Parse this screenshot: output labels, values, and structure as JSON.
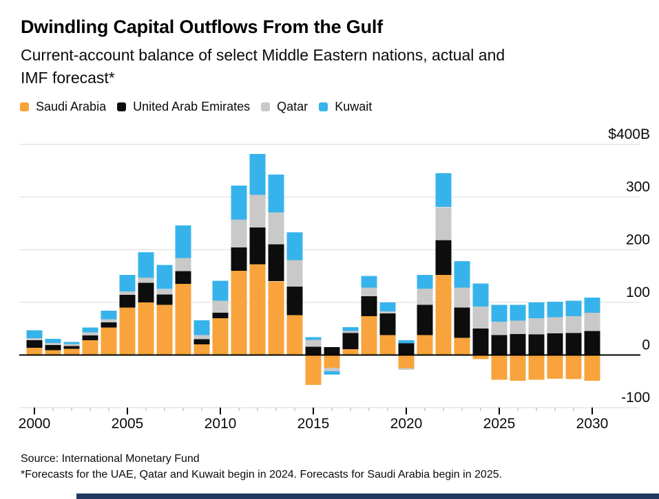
{
  "header": {
    "title": "Dwindling Capital Outflows From the Gulf",
    "subtitle_line1": "Current-account balance of select Middle Eastern nations, actual and",
    "subtitle_line2": "IMF forecast*"
  },
  "legend": [
    {
      "label": "Saudi Arabia",
      "color": "#F8A33B"
    },
    {
      "label": "United Arab Emirates",
      "color": "#0D0D0D"
    },
    {
      "label": "Qatar",
      "color": "#C9C9C9"
    },
    {
      "label": "Kuwait",
      "color": "#37B3EB"
    }
  ],
  "footer": {
    "source": "Source: International Monetary Fund",
    "footnote": "*Forecasts for the UAE, Qatar and Kuwait begin in 2024. Forecasts for Saudi Arabia begin in 2025.",
    "accent_bar_color": "#233A60"
  },
  "chart_data": {
    "type": "bar",
    "stacked": true,
    "title": "Dwindling Capital Outflows From the Gulf",
    "subtitle": "Current-account balance of select Middle Eastern nations, actual and IMF forecast*",
    "unit": "US$ billions",
    "grid": "horizontal",
    "legend_position": "top",
    "ylim": [
      -100,
      400
    ],
    "y_ticks": [
      400,
      300,
      200,
      100,
      0,
      -100
    ],
    "y_tick_labels": [
      "$400B",
      "300",
      "200",
      "100",
      "0",
      "-100"
    ],
    "x_tick_labels": [
      "2000",
      "2005",
      "2010",
      "2015",
      "2020",
      "2025",
      "2030"
    ],
    "categories": [
      2000,
      2001,
      2002,
      2003,
      2004,
      2005,
      2006,
      2007,
      2008,
      2009,
      2010,
      2011,
      2012,
      2013,
      2014,
      2015,
      2016,
      2017,
      2018,
      2019,
      2020,
      2021,
      2022,
      2023,
      2024,
      2025,
      2026,
      2027,
      2028,
      2029,
      2030
    ],
    "series": [
      {
        "name": "Saudi Arabia",
        "color": "#F8A33B",
        "values": [
          14,
          9,
          12,
          28,
          52,
          90,
          100,
          95,
          135,
          20,
          70,
          160,
          172,
          140,
          76,
          -57,
          -24,
          11,
          74,
          38,
          -25,
          38,
          152,
          33,
          -8,
          -47,
          -49,
          -47,
          -45,
          -46,
          -49
        ]
      },
      {
        "name": "United Arab Emirates",
        "color": "#0D0D0D",
        "values": [
          14,
          10,
          5,
          9,
          10,
          24,
          37,
          20,
          24,
          10,
          10,
          44,
          70,
          70,
          54,
          16,
          15,
          31,
          38,
          41,
          22,
          57,
          66,
          57,
          50,
          38,
          40,
          39,
          41,
          42,
          46
        ]
      },
      {
        "name": "Qatar",
        "color": "#C9C9C9",
        "values": [
          4,
          4,
          4,
          6,
          6,
          7,
          10,
          10,
          25,
          8,
          23,
          53,
          62,
          61,
          50,
          13,
          -7,
          4,
          16,
          4,
          -3,
          31,
          63,
          38,
          42,
          25,
          25,
          31,
          31,
          32,
          34
        ]
      },
      {
        "name": "Kuwait",
        "color": "#37B3EB",
        "values": [
          15,
          8,
          4,
          9,
          16,
          31,
          48,
          46,
          62,
          28,
          38,
          65,
          78,
          72,
          53,
          5,
          -6,
          7,
          22,
          17,
          6,
          26,
          64,
          50,
          44,
          32,
          30,
          30,
          29,
          29,
          29
        ]
      }
    ]
  }
}
